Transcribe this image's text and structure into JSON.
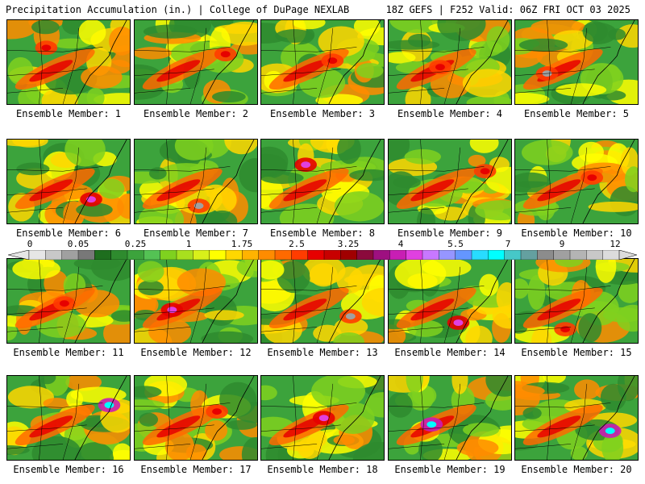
{
  "header": {
    "left": "Precipitation Accumulation (in.) | College of DuPage NEXLAB",
    "right": "18Z GEFS | F252 Valid: 06Z FRI OCT 03 2025"
  },
  "members": [
    {
      "label": "Ensemble Member: 1",
      "max": "red"
    },
    {
      "label": "Ensemble Member: 2",
      "max": "red"
    },
    {
      "label": "Ensemble Member: 3",
      "max": "red"
    },
    {
      "label": "Ensemble Member: 4",
      "max": "red"
    },
    {
      "label": "Ensemble Member: 5",
      "max": "gray"
    },
    {
      "label": "Ensemble Member: 6",
      "max": "magenta"
    },
    {
      "label": "Ensemble Member: 7",
      "max": "gray"
    },
    {
      "label": "Ensemble Member: 8",
      "max": "magenta"
    },
    {
      "label": "Ensemble Member: 9",
      "max": "red"
    },
    {
      "label": "Ensemble Member: 10",
      "max": "red"
    },
    {
      "label": "Ensemble Member: 11",
      "max": "red"
    },
    {
      "label": "Ensemble Member: 12",
      "max": "magenta"
    },
    {
      "label": "Ensemble Member: 13",
      "max": "gray"
    },
    {
      "label": "Ensemble Member: 14",
      "max": "magenta"
    },
    {
      "label": "Ensemble Member: 15",
      "max": "red"
    },
    {
      "label": "Ensemble Member: 16",
      "max": "cyan"
    },
    {
      "label": "Ensemble Member: 17",
      "max": "red"
    },
    {
      "label": "Ensemble Member: 18",
      "max": "magenta"
    },
    {
      "label": "Ensemble Member: 19",
      "max": "cyan"
    },
    {
      "label": "Ensemble Member: 20",
      "max": "cyan"
    }
  ],
  "colorbar": {
    "labels": [
      "0",
      "0.05",
      "0.25",
      "1",
      "1.75",
      "2.5",
      "3.25",
      "4",
      "5.5",
      "7",
      "9",
      "12"
    ],
    "colors": [
      "#e6e6e6",
      "#c8c8c8",
      "#a0a0a0",
      "#787878",
      "#1e6e1e",
      "#2e8b2e",
      "#3ca33c",
      "#54c254",
      "#7fd11f",
      "#a8e01e",
      "#d8f01a",
      "#ffff00",
      "#ffd700",
      "#ffb300",
      "#ff8c00",
      "#ff6a00",
      "#ff3c00",
      "#e60000",
      "#c80000",
      "#a00000",
      "#8b0a3c",
      "#9e1080",
      "#c81eb4",
      "#e040e0",
      "#c878ff",
      "#9696ff",
      "#6496ff",
      "#28dcff",
      "#00ffff",
      "#46c8c8",
      "#64a0a0",
      "#8c8c8c",
      "#a0a0a0",
      "#b4b4b4",
      "#c8c8c8",
      "#dcdcdc"
    ]
  }
}
